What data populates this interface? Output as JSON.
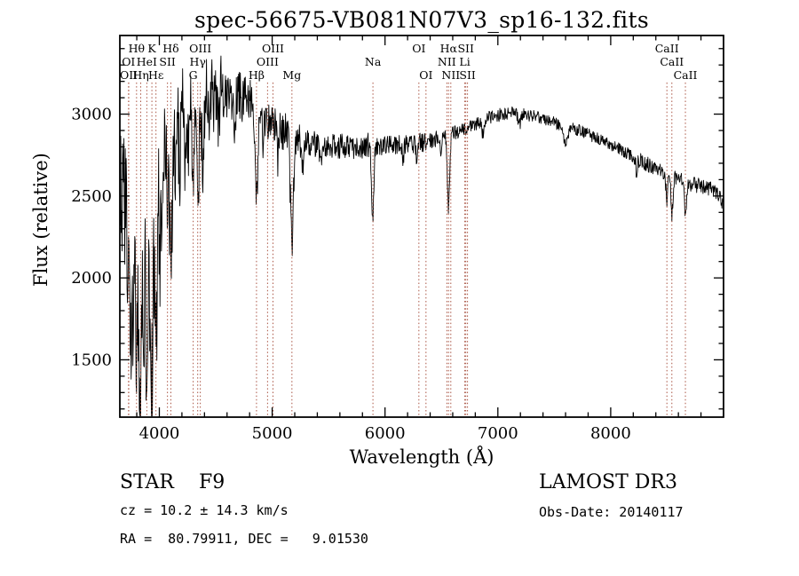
{
  "chart_data": {
    "type": "line",
    "title": "spec-56675-VB081N07V3_sp16-132.fits",
    "xlabel": "Wavelength (Å)",
    "ylabel": "Flux (relative)",
    "xlim": [
      3650,
      9000
    ],
    "ylim": [
      1150,
      3480
    ],
    "xticks": [
      4000,
      5000,
      6000,
      7000,
      8000
    ],
    "yticks": [
      1500,
      2000,
      2500,
      3000
    ],
    "x_minor_step": 200,
    "y_minor_step": 100,
    "grid": false,
    "legend": "none",
    "series_color": "#000000",
    "line_marker_color": "#aa5544",
    "noise_seed": 20140117,
    "sample_step": 4,
    "continuum": [
      [
        3650,
        2480
      ],
      [
        3700,
        2460
      ],
      [
        3760,
        2510
      ],
      [
        3850,
        2560
      ],
      [
        3950,
        2700
      ],
      [
        4050,
        2890
      ],
      [
        4150,
        3000
      ],
      [
        4250,
        3060
      ],
      [
        4350,
        3090
      ],
      [
        4450,
        3120
      ],
      [
        4550,
        3130
      ],
      [
        4650,
        3120
      ],
      [
        4750,
        3100
      ],
      [
        4850,
        3060
      ],
      [
        4950,
        2970
      ],
      [
        5050,
        2920
      ],
      [
        5150,
        2880
      ],
      [
        5250,
        2845
      ],
      [
        5350,
        2820
      ],
      [
        5450,
        2810
      ],
      [
        5550,
        2800
      ],
      [
        5650,
        2800
      ],
      [
        5750,
        2810
      ],
      [
        5850,
        2810
      ],
      [
        5950,
        2800
      ],
      [
        6050,
        2810
      ],
      [
        6150,
        2815
      ],
      [
        6250,
        2820
      ],
      [
        6350,
        2830
      ],
      [
        6450,
        2850
      ],
      [
        6550,
        2870
      ],
      [
        6650,
        2895
      ],
      [
        6750,
        2925
      ],
      [
        6850,
        2955
      ],
      [
        6950,
        2985
      ],
      [
        7050,
        3005
      ],
      [
        7150,
        3010
      ],
      [
        7250,
        3000
      ],
      [
        7350,
        2985
      ],
      [
        7450,
        2960
      ],
      [
        7550,
        2935
      ],
      [
        7650,
        2915
      ],
      [
        7750,
        2890
      ],
      [
        7850,
        2862
      ],
      [
        7950,
        2832
      ],
      [
        8050,
        2800
      ],
      [
        8150,
        2762
      ],
      [
        8250,
        2722
      ],
      [
        8350,
        2682
      ],
      [
        8450,
        2652
      ],
      [
        8550,
        2622
      ],
      [
        8650,
        2592
      ],
      [
        8750,
        2567
      ],
      [
        8850,
        2547
      ],
      [
        8950,
        2522
      ],
      [
        9000,
        2440
      ]
    ],
    "noise_segments": [
      [
        3650,
        3770,
        420
      ],
      [
        3770,
        4010,
        430
      ],
      [
        4010,
        4210,
        310
      ],
      [
        4210,
        4560,
        235
      ],
      [
        4560,
        4810,
        155
      ],
      [
        4810,
        5260,
        120
      ],
      [
        5260,
        5860,
        80
      ],
      [
        5860,
        6460,
        60
      ],
      [
        6460,
        7310,
        42
      ],
      [
        7310,
        8210,
        38
      ],
      [
        8210,
        9001,
        48
      ]
    ],
    "absorption_features": [
      [
        3727,
        500,
        8
      ],
      [
        3750,
        900,
        10
      ],
      [
        3770,
        650,
        8
      ],
      [
        3798,
        1000,
        9
      ],
      [
        3820,
        700,
        8
      ],
      [
        3835,
        1150,
        9
      ],
      [
        3862,
        800,
        8
      ],
      [
        3889,
        1150,
        10
      ],
      [
        3912,
        700,
        8
      ],
      [
        3934,
        1350,
        10
      ],
      [
        3970,
        1250,
        10
      ],
      [
        4005,
        600,
        8
      ],
      [
        4026,
        500,
        8
      ],
      [
        4072,
        520,
        8
      ],
      [
        4102,
        950,
        11
      ],
      [
        4144,
        420,
        8
      ],
      [
        4180,
        350,
        8
      ],
      [
        4227,
        380,
        8
      ],
      [
        4260,
        300,
        8
      ],
      [
        4300,
        420,
        10
      ],
      [
        4340,
        620,
        11
      ],
      [
        4383,
        380,
        8
      ],
      [
        4440,
        250,
        8
      ],
      [
        4520,
        200,
        8
      ],
      [
        4668,
        200,
        8
      ],
      [
        4861,
        580,
        11
      ],
      [
        4920,
        180,
        8
      ],
      [
        5050,
        180,
        8
      ],
      [
        5175,
        640,
        14
      ],
      [
        5270,
        160,
        8
      ],
      [
        5430,
        120,
        8
      ],
      [
        5890,
        440,
        10
      ],
      [
        6160,
        100,
        8
      ],
      [
        6280,
        90,
        8
      ],
      [
        6495,
        100,
        8
      ],
      [
        6563,
        440,
        10
      ],
      [
        6870,
        90,
        12
      ],
      [
        7190,
        70,
        12
      ],
      [
        7600,
        120,
        16
      ],
      [
        8230,
        80,
        8
      ],
      [
        8498,
        180,
        8
      ],
      [
        8542,
        240,
        9
      ],
      [
        8662,
        220,
        9
      ]
    ],
    "spectral_lines": [
      {
        "label": "Hθ",
        "wavelength": 3798,
        "row": 0
      },
      {
        "label": "K",
        "wavelength": 3934,
        "row": 0
      },
      {
        "label": "Hδ",
        "wavelength": 4102,
        "row": 0
      },
      {
        "label": "OIII",
        "wavelength": 4363,
        "row": 0
      },
      {
        "label": "OIII",
        "wavelength": 5007,
        "row": 0
      },
      {
        "label": "OI",
        "wavelength": 6300,
        "row": 0
      },
      {
        "label": "Hα",
        "wavelength": 6563,
        "row": 0
      },
      {
        "label": "SII",
        "wavelength": 6716,
        "row": 0
      },
      {
        "label": "CaII",
        "wavelength": 8498,
        "row": 0
      },
      {
        "label": "OI",
        "wavelength": 3727,
        "row": 1
      },
      {
        "label": "HeI",
        "wavelength": 3889,
        "row": 1
      },
      {
        "label": "SII",
        "wavelength": 4072,
        "row": 1
      },
      {
        "label": "Hγ",
        "wavelength": 4340,
        "row": 1
      },
      {
        "label": "OIII",
        "wavelength": 4959,
        "row": 1
      },
      {
        "label": "Na",
        "wavelength": 5893,
        "row": 1
      },
      {
        "label": "NII",
        "wavelength": 6548,
        "row": 1
      },
      {
        "label": "Li",
        "wavelength": 6707,
        "row": 1
      },
      {
        "label": "CaII",
        "wavelength": 8542,
        "row": 1
      },
      {
        "label": "OII",
        "wavelength": 3729,
        "row": 2
      },
      {
        "label": "Hη",
        "wavelength": 3835,
        "row": 2
      },
      {
        "label": "Hε",
        "wavelength": 3970,
        "row": 2
      },
      {
        "label": "G",
        "wavelength": 4300,
        "row": 2
      },
      {
        "label": "Hβ",
        "wavelength": 4861,
        "row": 2
      },
      {
        "label": "Mg",
        "wavelength": 5175,
        "row": 2
      },
      {
        "label": "OI",
        "wavelength": 6363,
        "row": 2
      },
      {
        "label": "NII",
        "wavelength": 6583,
        "row": 2
      },
      {
        "label": "SII",
        "wavelength": 6731,
        "row": 2
      },
      {
        "label": "CaII",
        "wavelength": 8662,
        "row": 2
      }
    ]
  },
  "footer": {
    "object_type": "STAR    F9",
    "survey": "LAMOST DR3",
    "cz": "cz = 10.2 ± 14.3 km/s",
    "obs_date": "Obs-Date: 20140117",
    "coords": "RA =  80.79911, DEC =   9.01530"
  }
}
